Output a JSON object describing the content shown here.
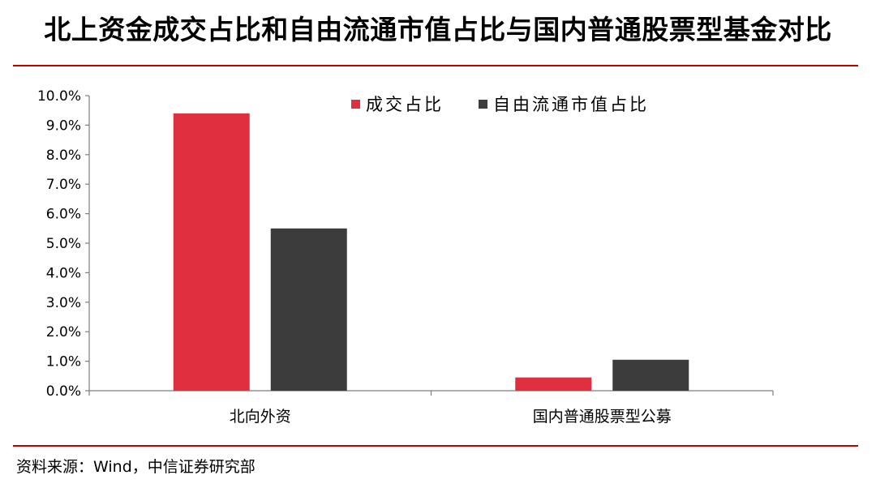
{
  "header": {
    "title": "北上资金成交占比和自由流通市值占比与国内普通股票型基金对比"
  },
  "footer": {
    "source": "资料来源：Wind，中信证券研究部"
  },
  "colors": {
    "rule": "#c00000",
    "axis": "#7f7f7f"
  },
  "chart_data": {
    "type": "bar",
    "categories": [
      "北向外资",
      "国内普通股票型公募"
    ],
    "series": [
      {
        "name": "成交占比",
        "color": "#e0303f",
        "values": [
          9.4,
          0.45
        ]
      },
      {
        "name": "自由流通市值占比",
        "color": "#3c3c3c",
        "values": [
          5.5,
          1.05
        ]
      }
    ],
    "y_ticks": [
      "0.0%",
      "1.0%",
      "2.0%",
      "3.0%",
      "4.0%",
      "5.0%",
      "6.0%",
      "7.0%",
      "8.0%",
      "9.0%",
      "10.0%"
    ],
    "ylim": [
      0,
      10
    ],
    "y_unit": "%",
    "legend_position": "top-right",
    "grid": false
  }
}
